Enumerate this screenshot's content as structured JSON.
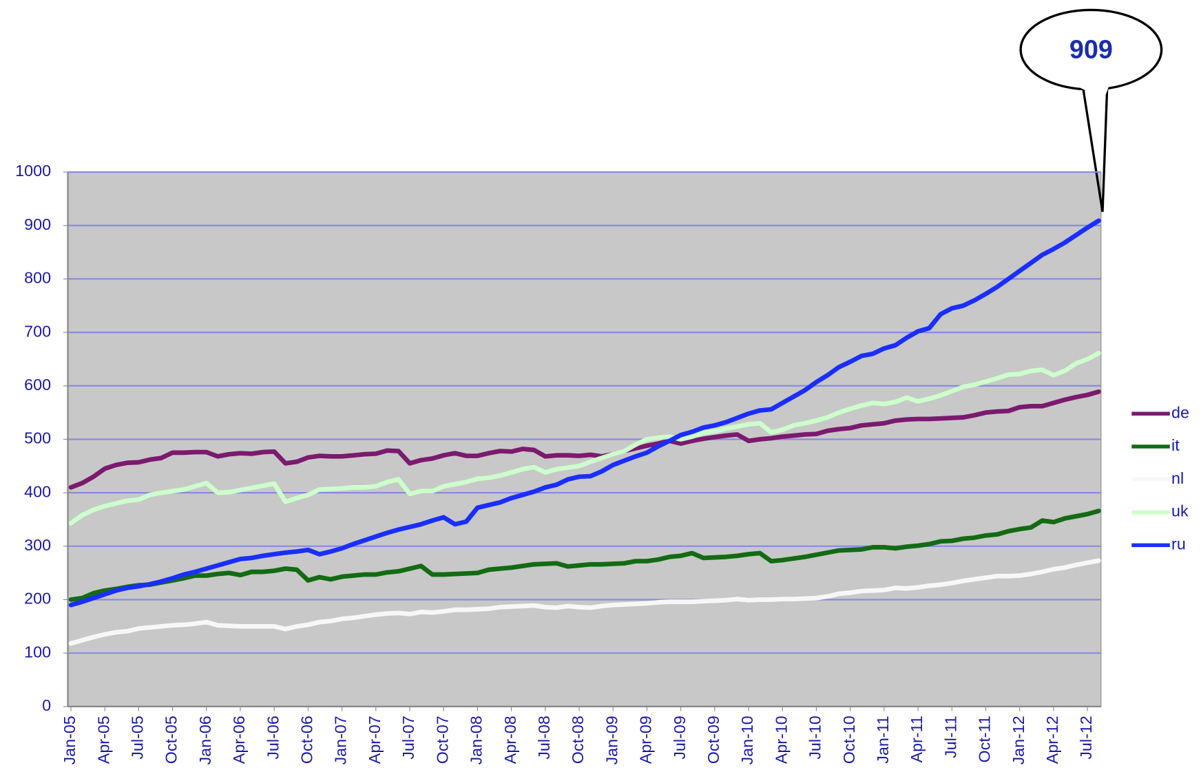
{
  "chart_data": {
    "type": "line",
    "categories": [
      "Jan-05",
      null,
      null,
      "Apr-05",
      null,
      null,
      "Jul-05",
      null,
      null,
      "Oct-05",
      null,
      null,
      "Jan-06",
      null,
      null,
      "Apr-06",
      null,
      null,
      "Jul-06",
      null,
      null,
      "Oct-06",
      null,
      null,
      "Jan-07",
      null,
      null,
      "Apr-07",
      null,
      null,
      "Jul-07",
      null,
      null,
      "Oct-07",
      null,
      null,
      "Jan-08",
      null,
      null,
      "Apr-08",
      null,
      null,
      "Jul-08",
      null,
      null,
      "Oct-08",
      null,
      null,
      "Jan-09",
      null,
      null,
      "Apr-09",
      null,
      null,
      "Jul-09",
      null,
      null,
      "Oct-09",
      null,
      null,
      "Jan-10",
      null,
      null,
      "Apr-10",
      null,
      null,
      "Jul-10",
      null,
      null,
      "Oct-10",
      null,
      null,
      "Jan-11",
      null,
      null,
      "Apr-11",
      null,
      null,
      "Jul-11",
      null,
      null,
      "Oct-11",
      null,
      null,
      "Jan-12",
      null,
      null,
      "Apr-12",
      null,
      null,
      "Jul-12",
      null
    ],
    "series": [
      {
        "name": "de",
        "color": "#7b1a6e",
        "values": [
          410,
          418,
          430,
          445,
          452,
          456,
          457,
          462,
          465,
          475,
          475,
          476,
          476,
          468,
          472,
          474,
          473,
          476,
          477,
          455,
          458,
          466,
          469,
          468,
          468,
          470,
          472,
          473,
          479,
          478,
          455,
          461,
          464,
          470,
          474,
          469,
          469,
          474,
          478,
          477,
          482,
          480,
          468,
          470,
          470,
          469,
          471,
          468,
          472,
          478,
          483,
          488,
          492,
          497,
          492,
          497,
          501,
          504,
          507,
          509,
          497,
          500,
          502,
          505,
          507,
          509,
          510,
          516,
          519,
          521,
          526,
          528,
          530,
          535,
          537,
          538,
          538,
          539,
          540,
          541,
          545,
          550,
          552,
          553,
          560,
          562,
          562,
          568,
          574,
          579,
          583,
          589
        ]
      },
      {
        "name": "it",
        "color": "#136b13",
        "values": [
          200,
          203,
          212,
          217,
          220,
          224,
          227,
          228,
          232,
          236,
          240,
          245,
          245,
          248,
          250,
          246,
          252,
          252,
          254,
          258,
          256,
          236,
          242,
          238,
          243,
          245,
          247,
          247,
          251,
          253,
          258,
          263,
          247,
          247,
          248,
          249,
          250,
          256,
          258,
          260,
          263,
          266,
          267,
          268,
          262,
          264,
          266,
          266,
          267,
          268,
          272,
          272,
          275,
          280,
          282,
          287,
          278,
          279,
          280,
          282,
          285,
          287,
          272,
          274,
          277,
          280,
          284,
          288,
          292,
          293,
          294,
          298,
          298,
          296,
          299,
          301,
          304,
          309,
          310,
          314,
          316,
          320,
          322,
          328,
          332,
          335,
          348,
          345,
          352,
          356,
          360,
          366
        ]
      },
      {
        "name": "nl",
        "color": "#f7f7f7",
        "values": [
          118,
          124,
          130,
          135,
          139,
          141,
          146,
          148,
          150,
          152,
          153,
          155,
          158,
          152,
          151,
          150,
          150,
          150,
          150,
          145,
          150,
          153,
          158,
          160,
          164,
          166,
          169,
          172,
          174,
          175,
          173,
          177,
          176,
          178,
          181,
          181,
          182,
          183,
          186,
          187,
          188,
          189,
          186,
          185,
          188,
          186,
          185,
          188,
          190,
          191,
          192,
          193,
          195,
          196,
          196,
          196,
          197,
          198,
          199,
          201,
          199,
          200,
          200,
          201,
          201,
          202,
          203,
          206,
          211,
          213,
          216,
          217,
          218,
          222,
          221,
          223,
          226,
          228,
          231,
          235,
          238,
          241,
          244,
          244,
          245,
          248,
          252,
          257,
          260,
          265,
          269,
          273
        ]
      },
      {
        "name": "uk",
        "color": "#ccffcc",
        "values": [
          343,
          358,
          368,
          375,
          380,
          385,
          387,
          396,
          400,
          403,
          406,
          412,
          418,
          400,
          401,
          405,
          409,
          413,
          417,
          383,
          390,
          396,
          406,
          407,
          408,
          410,
          410,
          412,
          420,
          425,
          398,
          403,
          403,
          412,
          416,
          420,
          426,
          428,
          432,
          438,
          444,
          448,
          438,
          444,
          447,
          450,
          458,
          465,
          472,
          478,
          490,
          500,
          503,
          505,
          500,
          505,
          512,
          515,
          520,
          524,
          528,
          530,
          513,
          518,
          526,
          530,
          535,
          541,
          550,
          557,
          563,
          568,
          566,
          570,
          578,
          571,
          576,
          582,
          590,
          598,
          602,
          608,
          614,
          621,
          622,
          628,
          630,
          620,
          628,
          642,
          650,
          661
        ]
      },
      {
        "name": "ru",
        "color": "#1a2eff",
        "values": [
          190,
          196,
          203,
          210,
          217,
          222,
          225,
          229,
          234,
          240,
          247,
          252,
          258,
          264,
          270,
          276,
          278,
          282,
          285,
          288,
          290,
          293,
          285,
          290,
          296,
          304,
          311,
          318,
          325,
          331,
          336,
          341,
          348,
          354,
          341,
          346,
          372,
          377,
          382,
          390,
          396,
          402,
          410,
          415,
          425,
          430,
          431,
          440,
          452,
          460,
          468,
          475,
          487,
          497,
          508,
          514,
          522,
          526,
          532,
          540,
          548,
          554,
          556,
          568,
          580,
          592,
          607,
          620,
          635,
          645,
          656,
          660,
          670,
          676,
          690,
          702,
          708,
          734,
          745,
          750,
          760,
          772,
          785,
          800,
          815,
          830,
          845,
          856,
          868,
          882,
          896,
          909
        ]
      }
    ],
    "ylim": [
      0,
      1000
    ],
    "yticks": [
      0,
      100,
      200,
      300,
      400,
      500,
      600,
      700,
      800,
      900,
      1000
    ],
    "grid": true,
    "annotation": "909",
    "plot_background": "#c8c8c8",
    "legend": "right"
  }
}
